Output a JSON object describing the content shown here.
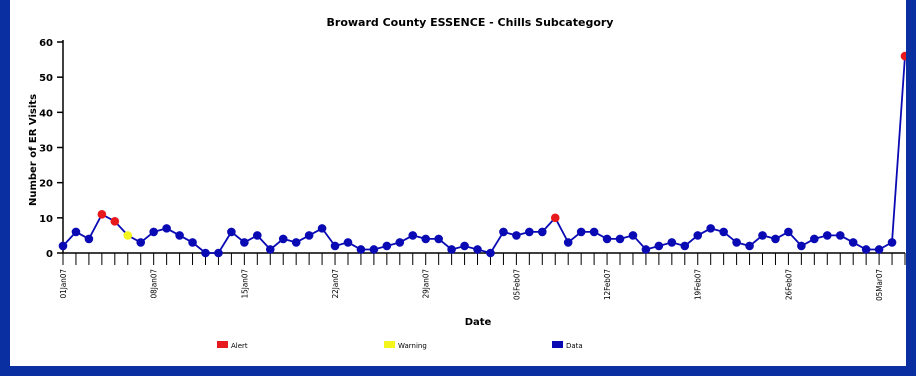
{
  "chart_data": {
    "type": "line",
    "title": "Broward County ESSENCE - Chills Subcategory",
    "xlabel": "Date",
    "ylabel": "Number of ER Visits",
    "ylim": [
      0,
      60
    ],
    "yticks": [
      0,
      10,
      20,
      30,
      40,
      50,
      60
    ],
    "x_tick_labels": [
      "01Jan07",
      "08Jan07",
      "15Jan07",
      "22Jan07",
      "29Jan07",
      "05Feb07",
      "12Feb07",
      "19Feb07",
      "26Feb07",
      "05Mar07"
    ],
    "x_start": "01Jan07",
    "series": [
      {
        "name": "Data",
        "color": "#0a0ab4",
        "values": [
          2,
          6,
          4,
          11,
          9,
          5,
          3,
          6,
          7,
          5,
          3,
          0,
          0,
          6,
          3,
          5,
          1,
          4,
          3,
          5,
          7,
          2,
          3,
          1,
          1,
          2,
          3,
          5,
          4,
          4,
          1,
          2,
          1,
          0,
          6,
          5,
          6,
          6,
          10,
          3,
          6,
          6,
          4,
          4,
          5,
          1,
          2,
          3,
          2,
          5,
          7,
          6,
          3,
          2,
          5,
          4,
          6,
          2,
          4,
          5,
          5,
          3,
          1,
          1,
          3,
          56
        ]
      }
    ],
    "alerts": [
      3,
      4,
      38,
      65
    ],
    "warnings": [
      5
    ],
    "legend": [
      {
        "label": "Alert",
        "color": "#e8191c"
      },
      {
        "label": "Warning",
        "color": "#f5f51e"
      },
      {
        "label": "Data",
        "color": "#0a0ab4"
      }
    ],
    "legend_position": "bottom",
    "grid": false
  }
}
